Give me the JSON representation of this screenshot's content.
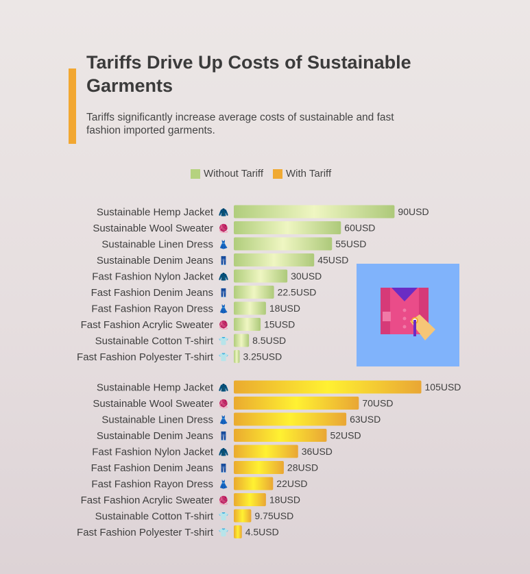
{
  "title": "Tariffs Drive Up Costs of Sustainable Garments",
  "subtitle": "Tariffs significantly increase average costs of sustainable and fast fashion imported garments.",
  "colors": {
    "accent": "#f2a731",
    "without_tariff": "#b5d27f",
    "with_tariff": "#f0aa33",
    "illustration_bg": "#80b3fb"
  },
  "legend": [
    {
      "label": "Without Tariff",
      "color": "#b5d27f"
    },
    {
      "label": "With Tariff",
      "color": "#f0aa33"
    }
  ],
  "illustration": {
    "icon": "shirt-price-tag-icon"
  },
  "chart_data": {
    "type": "bar",
    "orientation": "horizontal",
    "unit": "USD",
    "categories": [
      "Sustainable Hemp Jacket",
      "Sustainable Wool Sweater",
      "Sustainable Linen Dress",
      "Sustainable Denim Jeans",
      "Fast Fashion Nylon Jacket",
      "Fast Fashion Denim Jeans",
      "Fast Fashion Rayon Dress",
      "Fast Fashion Acrylic Sweater",
      "Sustainable Cotton T-shirt",
      "Fast Fashion Polyester T-shirt"
    ],
    "category_icons": [
      "🧥",
      "🧶",
      "👗",
      "👖",
      "🧥",
      "👖",
      "👗",
      "🧶",
      "👕",
      "👕"
    ],
    "series": [
      {
        "name": "Without Tariff",
        "values": [
          90,
          60,
          55,
          45,
          30,
          22.5,
          18,
          15,
          8.5,
          3.25
        ],
        "labels": [
          "90USD",
          "60USD",
          "55USD",
          "45USD",
          "30USD",
          "22.5USD",
          "18USD",
          "15USD",
          "8.5USD",
          "3.25USD"
        ]
      },
      {
        "name": "With Tariff",
        "values": [
          105,
          70,
          63,
          52,
          36,
          28,
          22,
          18,
          9.75,
          4.5
        ],
        "labels": [
          "105USD",
          "70USD",
          "63USD",
          "52USD",
          "36USD",
          "28USD",
          "22USD",
          "18USD",
          "9.75USD",
          "4.5USD"
        ]
      }
    ],
    "xlim": [
      0,
      105
    ],
    "legend_position": "top",
    "grid": false
  }
}
